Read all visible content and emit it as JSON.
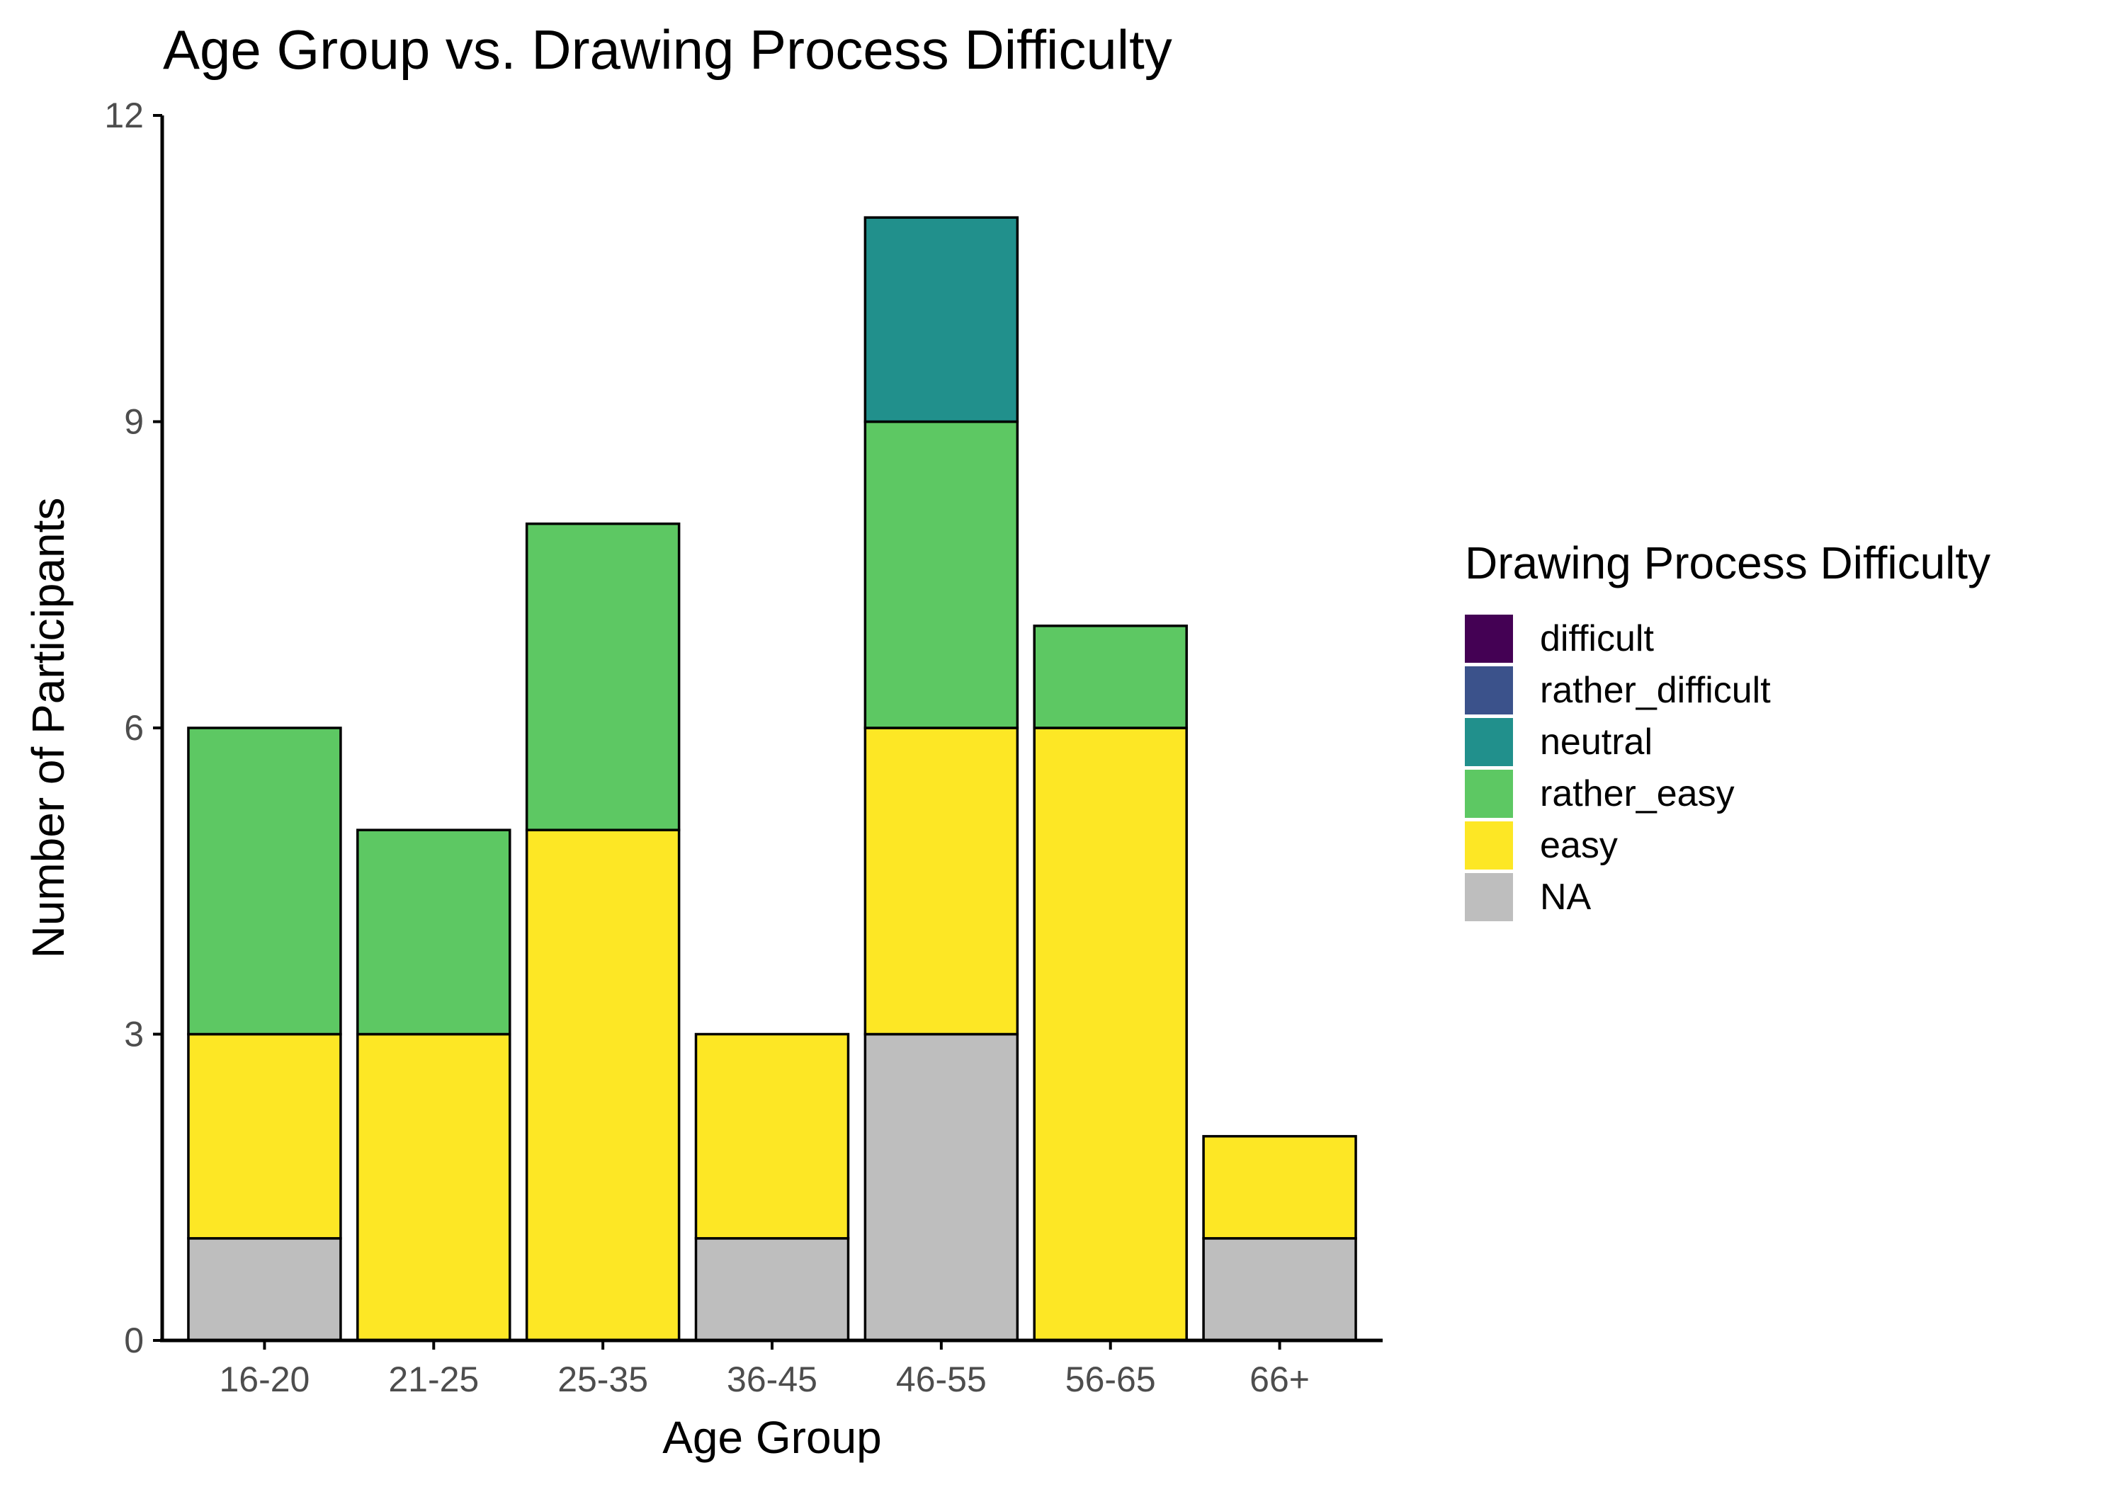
{
  "colors": {
    "difficult": "#440154",
    "rather_difficult": "#3b528b",
    "neutral": "#21908c",
    "rather_easy": "#5dc863",
    "easy": "#fde725",
    "NA": "#bebebe",
    "bar_outline": "#000000"
  },
  "chart_data": {
    "type": "bar",
    "stacked": true,
    "title": "Age Group vs. Drawing Process Difficulty",
    "xlabel": "Age Group",
    "ylabel": "Number of Participants",
    "ylim": [
      0,
      12
    ],
    "yticks": [
      0,
      3,
      6,
      9,
      12
    ],
    "ytick_labels": [
      "0",
      "3",
      "6",
      "9",
      "12"
    ],
    "grid": false,
    "legend_title": "Drawing Process Difficulty",
    "legend_position": "right",
    "categories": [
      "16-20",
      "21-25",
      "25-35",
      "36-45",
      "46-55",
      "56-65",
      "66+"
    ],
    "series": [
      {
        "name": "difficult",
        "values": [
          0,
          0,
          0,
          0,
          0,
          0,
          0
        ]
      },
      {
        "name": "rather_difficult",
        "values": [
          0,
          0,
          0,
          0,
          0,
          0,
          0
        ]
      },
      {
        "name": "neutral",
        "values": [
          0,
          0,
          0,
          0,
          2,
          0,
          0
        ]
      },
      {
        "name": "rather_easy",
        "values": [
          3,
          2,
          3,
          0,
          3,
          1,
          0
        ]
      },
      {
        "name": "easy",
        "values": [
          2,
          3,
          5,
          2,
          3,
          6,
          1
        ]
      },
      {
        "name": "NA",
        "values": [
          1,
          0,
          0,
          1,
          3,
          0,
          1
        ]
      }
    ]
  }
}
